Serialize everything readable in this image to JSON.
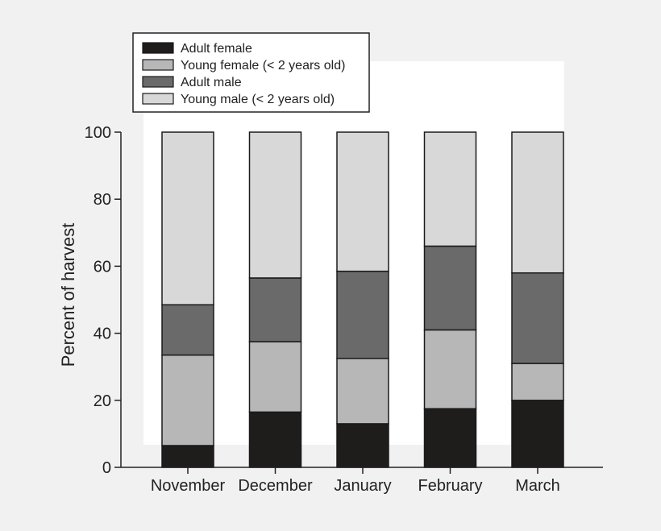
{
  "chart_data": {
    "type": "bar",
    "stacked": true,
    "title": "",
    "xlabel": "",
    "ylabel": "Percent of harvest",
    "ylim": [
      0,
      100
    ],
    "yticks": [
      0,
      20,
      40,
      60,
      80,
      100
    ],
    "grid": false,
    "legend_position": "top-left",
    "categories": [
      "November",
      "December",
      "January",
      "February",
      "March"
    ],
    "series": [
      {
        "name": "Adult female",
        "color": "#1f1c1c",
        "values": [
          6.5,
          16.5,
          13,
          17.5,
          20
        ]
      },
      {
        "name": "Young female (< 2 years old)",
        "color": "#b7b7b7",
        "values": [
          27,
          21,
          19.5,
          23.5,
          11
        ]
      },
      {
        "name": "Adult male",
        "color": "#6a6a6a",
        "values": [
          15,
          19,
          26,
          25,
          27
        ]
      },
      {
        "name": "Young male (< 2 years old)",
        "color": "#d8d8d8",
        "values": [
          51.5,
          43.5,
          41.5,
          34,
          42
        ]
      }
    ]
  }
}
